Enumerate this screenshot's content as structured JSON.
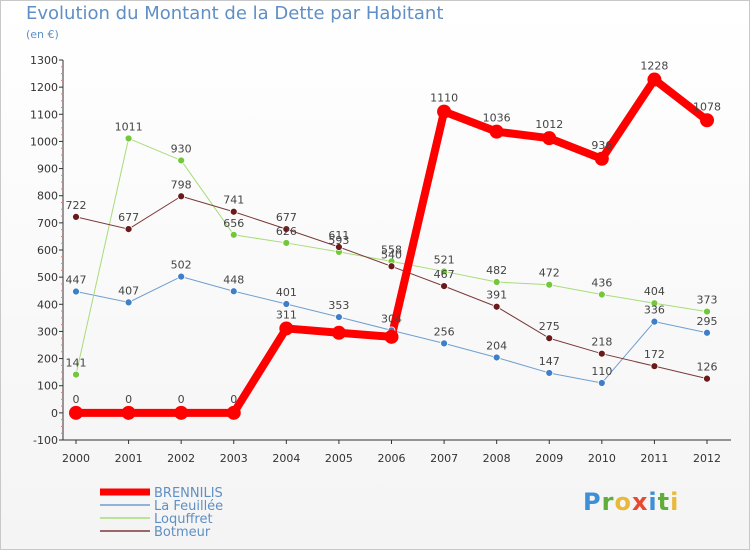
{
  "title": "Evolution du Montant de la Dette par Habitant",
  "unit": "(en €)",
  "logo": [
    "P",
    "r",
    "o",
    "x",
    "i",
    "t",
    "i"
  ],
  "chart_data": {
    "type": "line",
    "title": "Evolution du Montant de la Dette par Habitant",
    "ylabel": "(en €)",
    "x": [
      "2000",
      "2001",
      "2002",
      "2003",
      "2004",
      "2005",
      "2006",
      "2007",
      "2008",
      "2009",
      "2010",
      "2011",
      "2012"
    ],
    "ylim": [
      -100,
      1300
    ],
    "yticks": [
      -100,
      0,
      100,
      200,
      300,
      400,
      500,
      600,
      700,
      800,
      900,
      1000,
      1100,
      1200,
      1300
    ],
    "grid": false,
    "legend": "bottom-left",
    "series": [
      {
        "name": "BRENNILIS",
        "color": "#ff0000",
        "width": 8,
        "marker": 7,
        "dot": "#ff0000",
        "values": [
          0,
          0,
          0,
          0,
          311,
          295,
          280,
          1110,
          1036,
          1012,
          936,
          1228,
          1078
        ],
        "labels": [
          "0",
          "0",
          "0",
          "0",
          "311",
          "",
          "",
          "1110",
          "1036",
          "1012",
          "936",
          "1228",
          "1078"
        ]
      },
      {
        "name": "La Feuillée",
        "color": "#6f9fd0",
        "width": 1,
        "marker": 3.5,
        "dot": "#3f7fc8",
        "values": [
          447,
          407,
          502,
          448,
          401,
          353,
          304,
          256,
          204,
          147,
          110,
          336,
          295
        ],
        "labels": [
          "447",
          "407",
          "502",
          "448",
          "401",
          "353",
          "304",
          "256",
          "204",
          "147",
          "110",
          "336",
          "295"
        ]
      },
      {
        "name": "Loquffret",
        "color": "#a8dc78",
        "width": 1,
        "marker": 3.5,
        "dot": "#72c83a",
        "values": [
          141,
          1011,
          930,
          656,
          626,
          593,
          558,
          521,
          482,
          472,
          436,
          404,
          373
        ],
        "labels": [
          "141",
          "1011",
          "930",
          "656",
          "626",
          "593",
          "558",
          "521",
          "482",
          "472",
          "436",
          "404",
          "373"
        ]
      },
      {
        "name": "Botmeur",
        "color": "#7a3a3a",
        "width": 1,
        "marker": 3.5,
        "dot": "#6a1a1a",
        "values": [
          722,
          677,
          798,
          741,
          677,
          611,
          540,
          467,
          391,
          275,
          218,
          172,
          126
        ],
        "labels": [
          "722",
          "677",
          "798",
          "741",
          "677",
          "611",
          "540",
          "467",
          "391",
          "275",
          "218",
          "172",
          "126"
        ]
      }
    ]
  }
}
